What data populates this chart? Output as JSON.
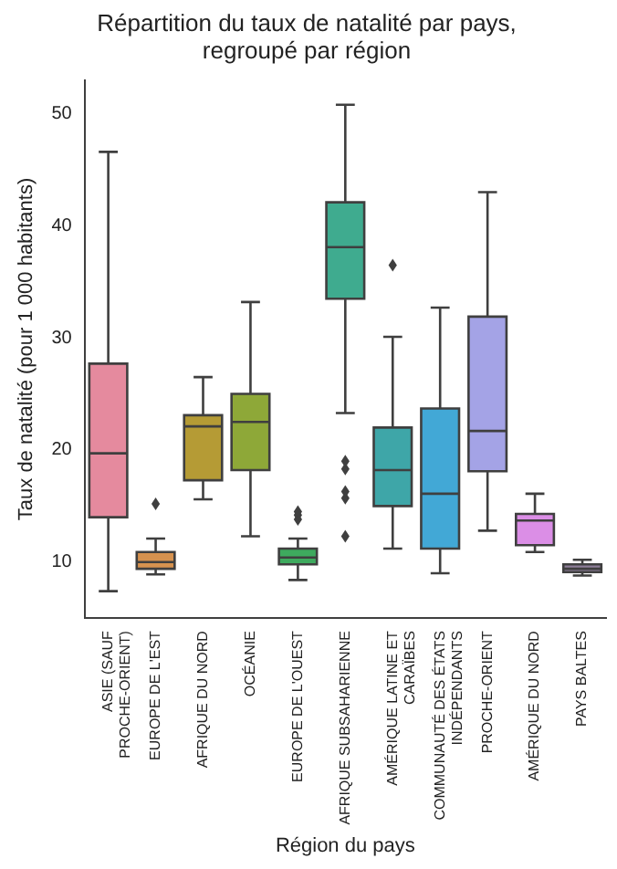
{
  "chart_data": {
    "type": "box",
    "title": "Répartition du taux de natalité par pays, regroupé par région",
    "xlabel": "Région du pays",
    "ylabel": "Taux de natalité (pour 1 000 habitants)",
    "categories": [
      "ASIE (SAUF PROCHE-ORIENT)",
      "EUROPE DE L'EST",
      "AFRIQUE DU NORD",
      "OCÉANIE",
      "EUROPE DE L'OUEST",
      "AFRIQUE SUBSAHARIENNE",
      "AMÉRIQUE LATINE ET CARAÏBES",
      "COMMUNAUTÉ DES ÉTATS INDÉPENDANTS",
      "PROCHE-ORIENT",
      "AMÉRIQUE DU NORD",
      "PAYS BALTES"
    ],
    "colors": [
      "#e58a9e",
      "#d6924f",
      "#b59b35",
      "#8ea838",
      "#3eaa5e",
      "#3fab8f",
      "#3ea6a8",
      "#42a8d6",
      "#a4a3e6",
      "#db8ee6",
      "#8f7f9a"
    ],
    "boxes": [
      {
        "low": 7.4,
        "q1": 14.0,
        "median": 19.7,
        "q3": 27.7,
        "high": 46.6
      },
      {
        "low": 8.9,
        "q1": 9.4,
        "median": 10.0,
        "q3": 10.9,
        "high": 12.1,
        "outliers": [
          15.2
        ]
      },
      {
        "low": 15.6,
        "q1": 17.3,
        "median": 22.1,
        "q3": 23.1,
        "high": 26.5
      },
      {
        "low": 12.3,
        "q1": 18.2,
        "median": 22.5,
        "q3": 25.0,
        "high": 33.2
      },
      {
        "low": 8.4,
        "q1": 9.8,
        "median": 10.4,
        "q3": 11.2,
        "high": 12.1,
        "outliers": [
          13.8,
          14.2,
          14.5
        ]
      },
      {
        "low": 23.3,
        "q1": 33.5,
        "median": 38.1,
        "q3": 42.1,
        "high": 50.8,
        "outliers": [
          12.3,
          15.7,
          16.3,
          18.3,
          19.0
        ]
      },
      {
        "low": 11.2,
        "q1": 15.0,
        "median": 18.2,
        "q3": 22.0,
        "high": 30.1,
        "outliers": [
          36.5
        ]
      },
      {
        "low": 9.0,
        "q1": 11.2,
        "median": 16.1,
        "q3": 23.7,
        "high": 32.7
      },
      {
        "low": 12.8,
        "q1": 18.1,
        "median": 21.7,
        "q3": 31.9,
        "high": 43.0
      },
      {
        "low": 10.9,
        "q1": 11.5,
        "median": 13.7,
        "q3": 14.3,
        "high": 16.1
      },
      {
        "low": 8.8,
        "q1": 9.1,
        "median": 9.4,
        "q3": 9.8,
        "high": 10.2
      }
    ],
    "ylim": [
      5,
      53
    ],
    "yticks": [
      10,
      20,
      30,
      40,
      50
    ]
  }
}
